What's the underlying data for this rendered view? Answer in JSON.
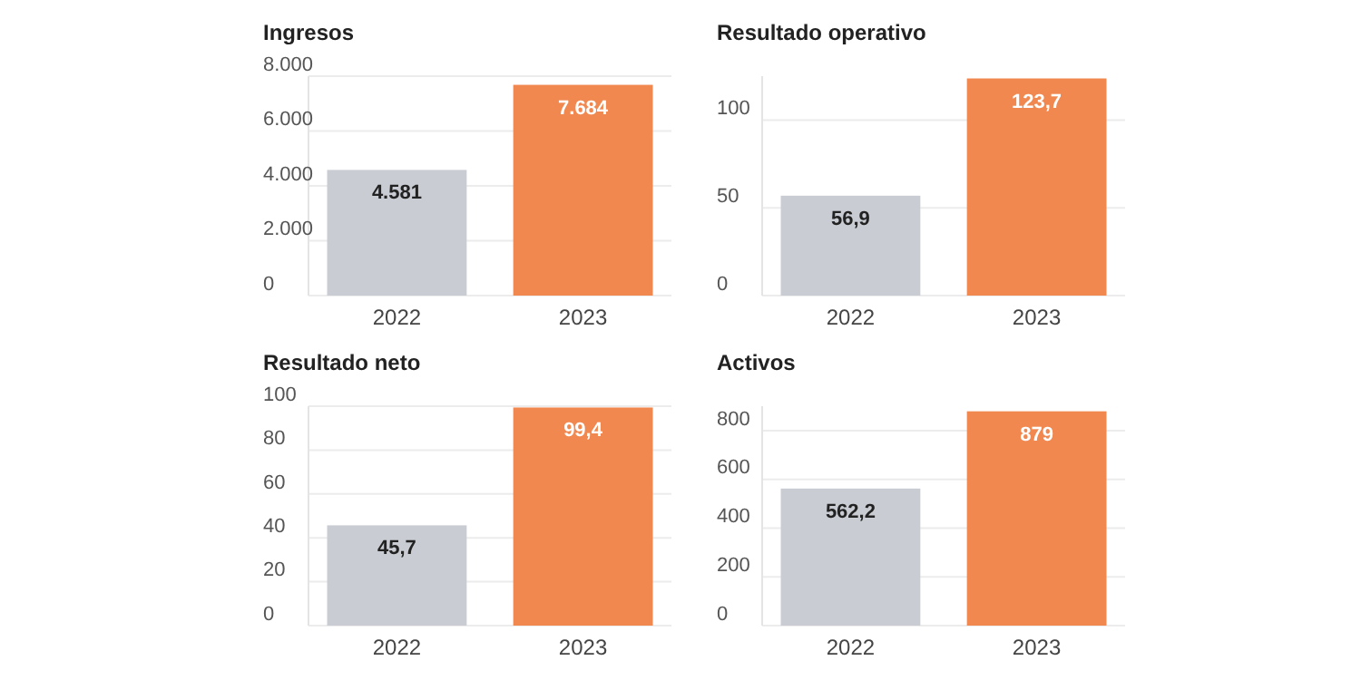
{
  "chart_data": [
    {
      "type": "bar",
      "title": "Ingresos",
      "categories": [
        "2022",
        "2023"
      ],
      "values": [
        4581,
        7684
      ],
      "colors": [
        "#c9ccd2",
        "#f0884f"
      ],
      "value_labels": [
        "4.581",
        "7.684"
      ],
      "ylim": [
        0,
        8000
      ],
      "yticks": [
        0,
        {
          "value": 2000,
          "label": "2.000"
        },
        {
          "value": 4000,
          "label": "4.000"
        },
        {
          "value": 6000,
          "label": "6.000"
        },
        {
          "value": 8000,
          "label": "8.000"
        }
      ],
      "grid": "y"
    },
    {
      "type": "bar",
      "title": "Resultado operativo",
      "categories": [
        "2022",
        "2023"
      ],
      "values": [
        56.9,
        123.7
      ],
      "colors": [
        "#c9ccd2",
        "#f0884f"
      ],
      "value_labels": [
        "56,9",
        "123,7"
      ],
      "ylim": [
        0,
        125
      ],
      "yticks": [
        0,
        50,
        100
      ],
      "grid": "y"
    },
    {
      "type": "bar",
      "title": "Resultado neto",
      "categories": [
        "2022",
        "2023"
      ],
      "values": [
        45.7,
        99.4
      ],
      "colors": [
        "#c9ccd2",
        "#f0884f"
      ],
      "value_labels": [
        "45,7",
        "99,4"
      ],
      "ylim": [
        0,
        100
      ],
      "yticks": [
        0,
        20,
        40,
        60,
        80,
        100
      ],
      "grid": "y"
    },
    {
      "type": "bar",
      "title": "Activos",
      "categories": [
        "2022",
        "2023"
      ],
      "values": [
        562.2,
        879
      ],
      "colors": [
        "#c9ccd2",
        "#f0884f"
      ],
      "value_labels": [
        "562,2",
        "879"
      ],
      "ylim": [
        0,
        900
      ],
      "yticks": [
        0,
        200,
        400,
        600,
        800
      ],
      "grid": "y"
    }
  ]
}
